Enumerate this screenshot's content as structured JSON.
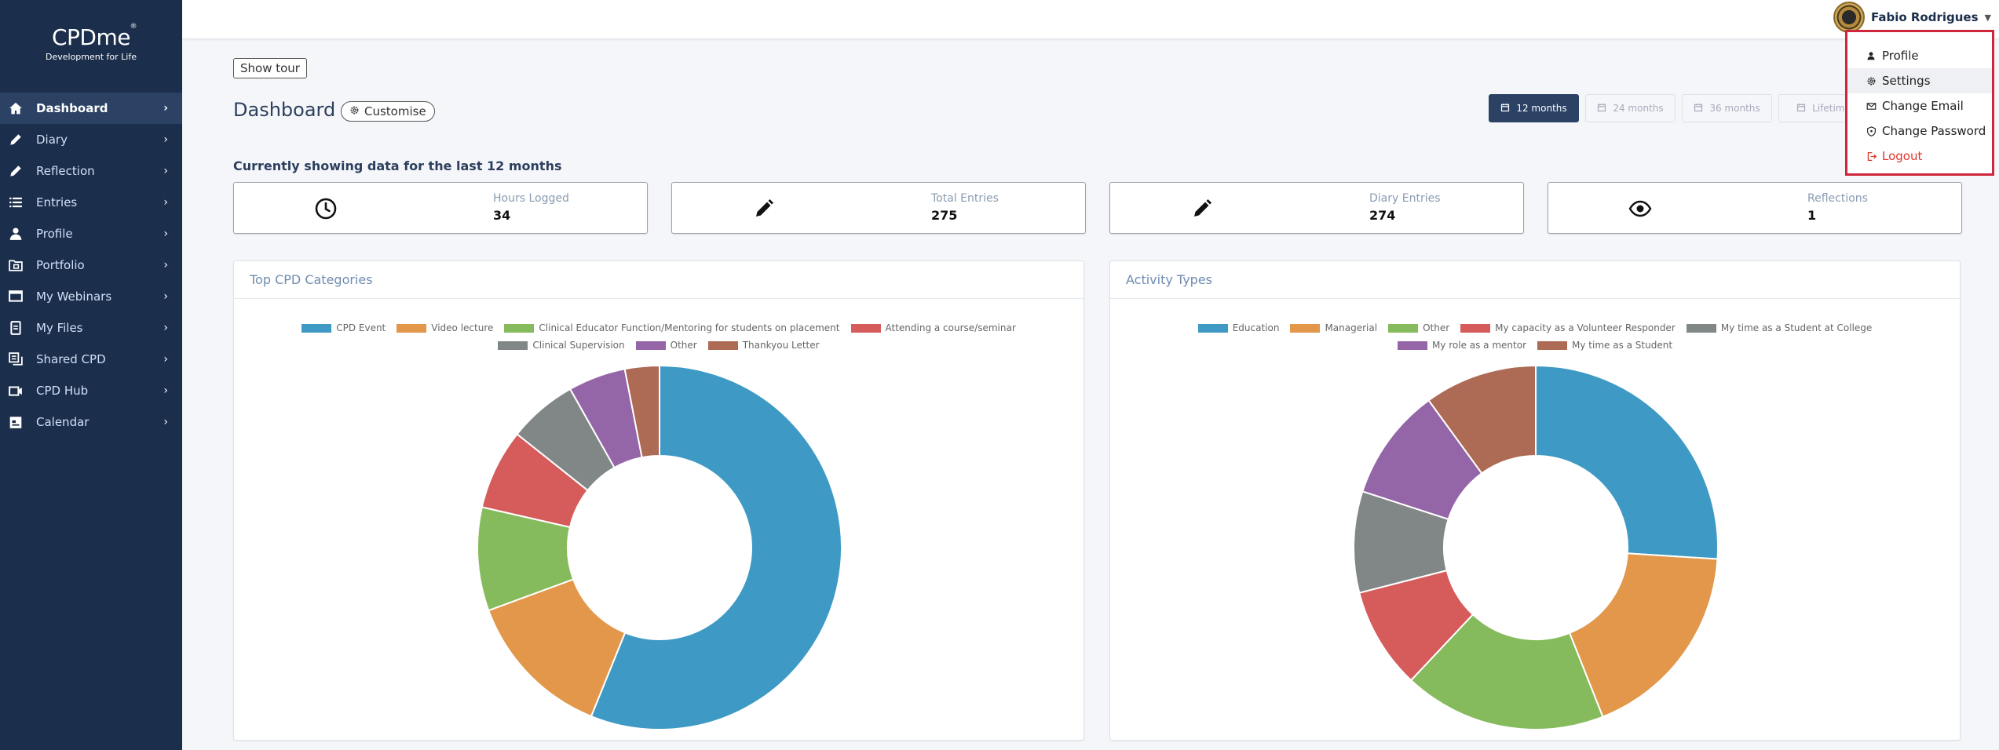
{
  "brand": {
    "title": "CPDme",
    "tagline": "Development for Life",
    "mark": "®"
  },
  "sidebar": {
    "items": [
      {
        "label": "Dashboard",
        "icon": "home-icon"
      },
      {
        "label": "Diary",
        "icon": "pencil-icon"
      },
      {
        "label": "Reflection",
        "icon": "pencil-icon"
      },
      {
        "label": "Entries",
        "icon": "list-icon"
      },
      {
        "label": "Profile",
        "icon": "person-icon"
      },
      {
        "label": "Portfolio",
        "icon": "portfolio-icon"
      },
      {
        "label": "My Webinars",
        "icon": "webinar-icon"
      },
      {
        "label": "My Files",
        "icon": "files-icon"
      },
      {
        "label": "Shared CPD",
        "icon": "shared-icon"
      },
      {
        "label": "CPD Hub",
        "icon": "video-icon"
      },
      {
        "label": "Calendar",
        "icon": "calendar-icon"
      }
    ]
  },
  "user": {
    "name": "Fabio Rodrigues"
  },
  "dropdown": {
    "items": [
      {
        "label": "Profile",
        "icon": "person-icon"
      },
      {
        "label": "Settings",
        "icon": "gear-icon"
      },
      {
        "label": "Change Email",
        "icon": "envelope-icon"
      },
      {
        "label": "Change Password",
        "icon": "shield-icon"
      },
      {
        "label": "Logout",
        "icon": "logout-icon"
      }
    ]
  },
  "toolbar": {
    "tour_label": "Show tour",
    "customise_label": "Customise"
  },
  "page": {
    "title": "Dashboard",
    "showing": "Currently showing data for the last 12 months"
  },
  "ranges": [
    "12 months",
    "24 months",
    "36 months",
    "Lifetime"
  ],
  "stats": [
    {
      "label": "Hours Logged",
      "value": "34",
      "icon": "clock-icon"
    },
    {
      "label": "Total Entries",
      "value": "275",
      "icon": "pencil-icon"
    },
    {
      "label": "Diary Entries",
      "value": "274",
      "icon": "pencil-icon"
    },
    {
      "label": "Reflections",
      "value": "1",
      "icon": "eye-icon"
    }
  ],
  "chart_data": [
    {
      "type": "pie",
      "title": "Top CPD Categories",
      "donut": true,
      "labels": [
        "CPD Event",
        "Video lecture",
        "Clinical Educator Function/Mentoring for students on placement",
        "Attending a course/seminar",
        "Clinical Supervision",
        "Other",
        "Thankyou Letter"
      ],
      "values": [
        55,
        13,
        9,
        7,
        6,
        5,
        3
      ],
      "colors": [
        "#3e9ac4",
        "#e2974b",
        "#85bb5c",
        "#d65b5b",
        "#818787",
        "#9466a8",
        "#ad6a55"
      ],
      "legend": "top"
    },
    {
      "type": "pie",
      "title": "Activity Types",
      "donut": true,
      "labels": [
        "Education",
        "Managerial",
        "Other",
        "My capacity as a Volunteer Responder",
        "My time as a Student at College",
        "My role as a mentor",
        "My time as a Student"
      ],
      "values": [
        26,
        18,
        18,
        9,
        9,
        10,
        10
      ],
      "colors": [
        "#3e9ac4",
        "#e2974b",
        "#85bb5c",
        "#d65b5b",
        "#818787",
        "#9466a8",
        "#ad6a55"
      ],
      "legend": "top"
    }
  ]
}
